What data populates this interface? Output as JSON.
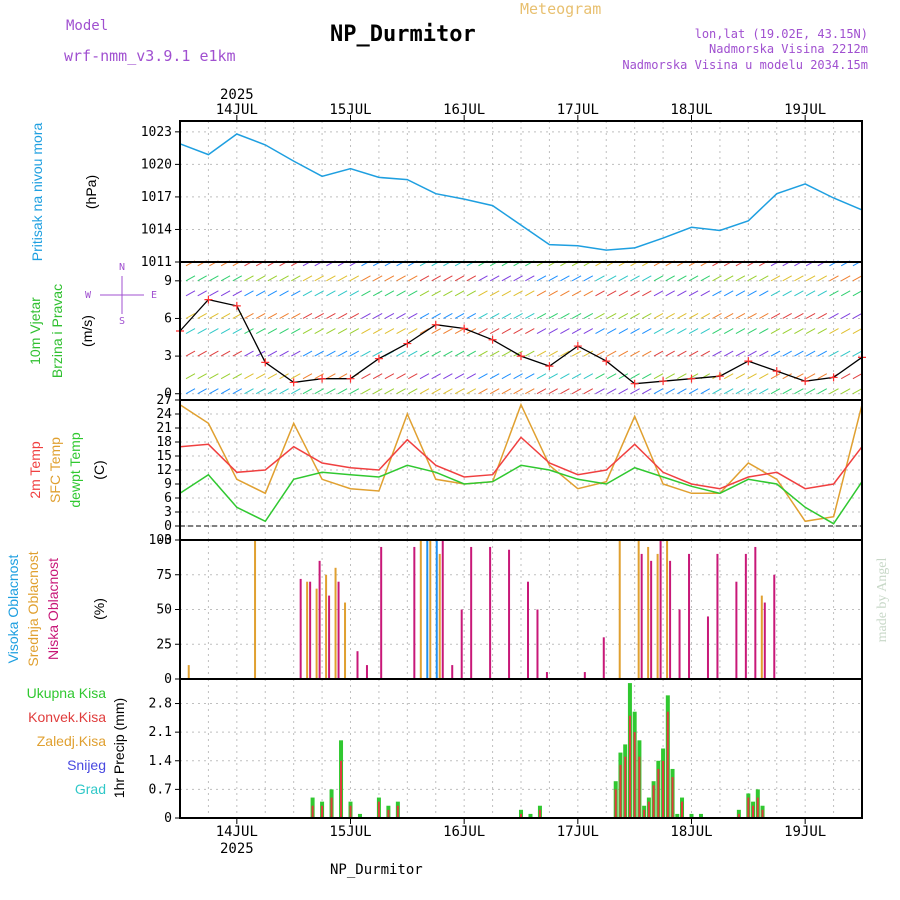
{
  "header": {
    "title": "NP_Durmitor",
    "kind": "Meteogram",
    "model_label": "Model",
    "model_name": "wrf-nmm_v3.9.1 e1km",
    "location": "lon,lat (19.02E, 43.15N)",
    "elevation": "Nadmorska Visina 2212m",
    "model_elevation": "Nadmorska Visina u modelu 2034.15m",
    "credit": "made by Angel",
    "footer_title": "NP_Durmitor"
  },
  "time_axis": {
    "year_label": "2025",
    "day_labels": [
      "14JUL",
      "15JUL",
      "16JUL",
      "17JUL",
      "18JUL",
      "19JUL"
    ],
    "start": "2025-07-13 12:00",
    "end": "2025-07-19 12:00"
  },
  "colors": {
    "pressure": "#1e9fe0",
    "temp2m": "#f04040",
    "sfc_temp": "#e0a030",
    "dewpoint": "#30c830",
    "high_cloud": "#2090f0",
    "mid_cloud": "#e0a030",
    "low_cloud": "#c81878",
    "precip_total": "#30c830",
    "precip_conv": "#e03c3c",
    "snow": "#4848e0",
    "hail": "#30c8c8",
    "wind_speed": "#000000",
    "gust_marker": "#ff3030"
  },
  "chart_data": [
    {
      "type": "line",
      "title": "",
      "ylabel_lines": [
        "Pritisak na nivou mora",
        "(hPa)"
      ],
      "yticks": [
        1011,
        1014,
        1017,
        1020,
        1023
      ],
      "ylim": [
        1011,
        1024
      ],
      "grid": true,
      "x": [
        "2025-07-13 12:00",
        "2025-07-13 18:00",
        "2025-07-14 00:00",
        "2025-07-14 06:00",
        "2025-07-14 12:00",
        "2025-07-14 18:00",
        "2025-07-15 00:00",
        "2025-07-15 06:00",
        "2025-07-15 12:00",
        "2025-07-15 18:00",
        "2025-07-16 00:00",
        "2025-07-16 06:00",
        "2025-07-16 12:00",
        "2025-07-16 18:00",
        "2025-07-17 00:00",
        "2025-07-17 06:00",
        "2025-07-17 12:00",
        "2025-07-17 18:00",
        "2025-07-18 00:00",
        "2025-07-18 06:00",
        "2025-07-18 12:00",
        "2025-07-18 18:00",
        "2025-07-19 00:00",
        "2025-07-19 06:00",
        "2025-07-19 12:00"
      ],
      "series": [
        {
          "name": "",
          "values": [
            1021.9,
            1020.9,
            1022.8,
            1021.8,
            1020.3,
            1018.9,
            1019.6,
            1018.8,
            1018.6,
            1017.3,
            1016.8,
            1016.2,
            1014.4,
            1012.6,
            1012.5,
            1012.1,
            1012.3,
            1013.2,
            1014.2,
            1013.9,
            1014.8,
            1017.3,
            1018.2,
            1016.9,
            1015.8
          ]
        }
      ]
    },
    {
      "type": "line",
      "title": "",
      "ylabel_lines": [
        "10m Vjetar",
        "Brzina i Pravac",
        "(m/s)"
      ],
      "compass": {
        "n": "N",
        "w": "W",
        "e": "E",
        "s": "S"
      },
      "yticks": [
        0,
        3,
        6,
        9
      ],
      "ylim": [
        -0.5,
        10.5
      ],
      "grid": true,
      "x": [
        "2025-07-13 12:00",
        "2025-07-13 18:00",
        "2025-07-14 00:00",
        "2025-07-14 06:00",
        "2025-07-14 12:00",
        "2025-07-14 18:00",
        "2025-07-15 00:00",
        "2025-07-15 06:00",
        "2025-07-15 12:00",
        "2025-07-15 18:00",
        "2025-07-16 00:00",
        "2025-07-16 06:00",
        "2025-07-16 12:00",
        "2025-07-16 18:00",
        "2025-07-17 00:00",
        "2025-07-17 06:00",
        "2025-07-17 12:00",
        "2025-07-17 18:00",
        "2025-07-18 00:00",
        "2025-07-18 06:00",
        "2025-07-18 12:00",
        "2025-07-18 18:00",
        "2025-07-19 00:00",
        "2025-07-19 06:00",
        "2025-07-19 12:00"
      ],
      "series": [
        {
          "name": "",
          "values": [
            5.0,
            7.5,
            7.0,
            2.5,
            0.9,
            1.2,
            1.2,
            2.8,
            4.0,
            5.5,
            5.2,
            4.3,
            3.0,
            2.2,
            3.8,
            2.6,
            0.8,
            1.0,
            1.2,
            1.4,
            2.6,
            1.8,
            1.0,
            1.3,
            2.9
          ]
        }
      ]
    },
    {
      "type": "line",
      "title": "",
      "ylabel_lines": [
        "2m Temp",
        "SFC Temp",
        "dewpt Temp",
        "(C)"
      ],
      "yticks": [
        -3,
        0,
        3,
        6,
        9,
        12,
        15,
        18,
        21,
        24,
        27
      ],
      "ylim": [
        -3,
        27
      ],
      "grid": true,
      "x": [
        "2025-07-13 12:00",
        "2025-07-13 18:00",
        "2025-07-14 00:00",
        "2025-07-14 06:00",
        "2025-07-14 12:00",
        "2025-07-14 18:00",
        "2025-07-15 00:00",
        "2025-07-15 06:00",
        "2025-07-15 12:00",
        "2025-07-15 18:00",
        "2025-07-16 00:00",
        "2025-07-16 06:00",
        "2025-07-16 12:00",
        "2025-07-16 18:00",
        "2025-07-17 00:00",
        "2025-07-17 06:00",
        "2025-07-17 12:00",
        "2025-07-17 18:00",
        "2025-07-18 00:00",
        "2025-07-18 06:00",
        "2025-07-18 12:00",
        "2025-07-18 18:00",
        "2025-07-19 00:00",
        "2025-07-19 06:00",
        "2025-07-19 12:00"
      ],
      "series": [
        {
          "name": "2m Temp",
          "values": [
            17.0,
            17.5,
            11.5,
            12.0,
            17.0,
            13.5,
            12.5,
            12.0,
            18.5,
            13.0,
            10.5,
            11.0,
            19.0,
            13.5,
            11.0,
            12.0,
            17.5,
            11.5,
            9.0,
            8.0,
            10.5,
            11.5,
            8.0,
            9.0,
            17.0
          ]
        },
        {
          "name": "SFC Temp",
          "values": [
            26.0,
            22.0,
            10.0,
            7.0,
            22.0,
            10.0,
            8.0,
            7.5,
            24.0,
            10.0,
            9.0,
            9.5,
            26.0,
            13.0,
            8.0,
            9.5,
            23.5,
            9.0,
            7.0,
            7.0,
            13.5,
            10.0,
            1.0,
            2.0,
            26.0
          ]
        },
        {
          "name": "dewpt Temp",
          "values": [
            7.0,
            11.0,
            4.0,
            1.0,
            10.0,
            11.5,
            11.0,
            10.5,
            13.0,
            11.5,
            9.0,
            9.5,
            13.0,
            12.0,
            10.0,
            9.0,
            12.5,
            10.5,
            8.5,
            7.0,
            10.0,
            9.0,
            4.0,
            0.5,
            9.5
          ]
        }
      ]
    },
    {
      "type": "bar",
      "title": "",
      "ylabel_lines": [
        "Visoka Oblacnost",
        "Srednja Oblacnost",
        "Niska Oblacnost",
        "(%)"
      ],
      "yticks": [
        0,
        25,
        50,
        75,
        100
      ],
      "ylim": [
        0,
        100
      ],
      "grid": true,
      "x": [
        "2025-07-13 13:00",
        "2025-07-14 03:00",
        "2025-07-14 12:00",
        "2025-07-14 14:00",
        "2025-07-14 16:00",
        "2025-07-14 18:00",
        "2025-07-14 20:00",
        "2025-07-14 22:00",
        "2025-07-15 00:00",
        "2025-07-15 02:00",
        "2025-07-15 05:00",
        "2025-07-15 12:00",
        "2025-07-15 14:00",
        "2025-07-15 16:00",
        "2025-07-15 18:00",
        "2025-07-15 20:00",
        "2025-07-15 22:00",
        "2025-07-16 00:00",
        "2025-07-16 04:00",
        "2025-07-16 08:00",
        "2025-07-16 12:00",
        "2025-07-16 14:00",
        "2025-07-16 16:00",
        "2025-07-16 20:00",
        "2025-07-17 00:00",
        "2025-07-17 04:00",
        "2025-07-17 08:00",
        "2025-07-17 12:00",
        "2025-07-17 14:00",
        "2025-07-17 16:00",
        "2025-07-17 18:00",
        "2025-07-17 20:00",
        "2025-07-17 22:00",
        "2025-07-18 02:00",
        "2025-07-18 04:00",
        "2025-07-18 08:00",
        "2025-07-18 10:00",
        "2025-07-18 12:00",
        "2025-07-18 14:00",
        "2025-07-18 16:00",
        "2025-07-18 18:00",
        "2025-07-18 20:00",
        "2025-07-19 00:00"
      ],
      "series": [
        {
          "name": "Visoka Oblacnost",
          "values": [
            0,
            0,
            0,
            0,
            0,
            0,
            0,
            0,
            0,
            0,
            0,
            0,
            0,
            100,
            100,
            0,
            0,
            0,
            0,
            0,
            0,
            0,
            0,
            0,
            0,
            0,
            0,
            0,
            0,
            0,
            0,
            0,
            0,
            0,
            0,
            0,
            0,
            0,
            0,
            0,
            0,
            0,
            0
          ]
        },
        {
          "name": "Srednja Oblacnost",
          "values": [
            10,
            100,
            0,
            70,
            65,
            75,
            80,
            55,
            0,
            0,
            0,
            0,
            100,
            100,
            90,
            0,
            0,
            0,
            0,
            0,
            0,
            0,
            0,
            0,
            0,
            0,
            100,
            100,
            95,
            90,
            100,
            0,
            0,
            0,
            0,
            0,
            0,
            0,
            60,
            0,
            0,
            0,
            0
          ]
        },
        {
          "name": "Niska Oblacnost",
          "values": [
            0,
            0,
            72,
            70,
            85,
            60,
            70,
            0,
            20,
            10,
            95,
            95,
            0,
            0,
            100,
            10,
            50,
            95,
            95,
            93,
            70,
            50,
            5,
            0,
            5,
            30,
            0,
            90,
            85,
            100,
            85,
            50,
            90,
            45,
            90,
            70,
            90,
            95,
            55,
            75,
            0,
            0,
            0
          ]
        }
      ]
    },
    {
      "type": "bar",
      "title": "",
      "ylabel_lines": [
        "1hr Precip (mm)"
      ],
      "legend_entries": [
        "Ukupna Kisa",
        "Konvek.Kisa",
        "Zaledj.Kisa",
        "Snijeg",
        "Grad"
      ],
      "yticks": [
        0,
        0.7,
        1.4,
        2.1,
        2.8
      ],
      "ylim": [
        0,
        3.4
      ],
      "grid": true,
      "x": [
        "2025-07-14 16:00",
        "2025-07-14 18:00",
        "2025-07-14 20:00",
        "2025-07-14 22:00",
        "2025-07-15 00:00",
        "2025-07-15 02:00",
        "2025-07-15 06:00",
        "2025-07-15 08:00",
        "2025-07-15 10:00",
        "2025-07-16 12:00",
        "2025-07-16 14:00",
        "2025-07-16 16:00",
        "2025-07-17 08:00",
        "2025-07-17 09:00",
        "2025-07-17 10:00",
        "2025-07-17 11:00",
        "2025-07-17 12:00",
        "2025-07-17 13:00",
        "2025-07-17 14:00",
        "2025-07-17 15:00",
        "2025-07-17 16:00",
        "2025-07-17 17:00",
        "2025-07-17 18:00",
        "2025-07-17 19:00",
        "2025-07-17 20:00",
        "2025-07-17 21:00",
        "2025-07-17 22:00",
        "2025-07-18 00:00",
        "2025-07-18 02:00",
        "2025-07-18 10:00",
        "2025-07-18 12:00",
        "2025-07-18 13:00",
        "2025-07-18 14:00",
        "2025-07-18 15:00"
      ],
      "series": [
        {
          "name": "Ukupna Kisa",
          "values": [
            0.5,
            0.4,
            0.7,
            1.9,
            0.4,
            0.1,
            0.5,
            0.3,
            0.4,
            0.2,
            0.1,
            0.3,
            0.9,
            1.6,
            1.8,
            3.3,
            2.6,
            1.9,
            0.3,
            0.5,
            0.9,
            1.4,
            1.7,
            3.0,
            1.2,
            0.1,
            0.5,
            0.1,
            0.1,
            0.2,
            0.6,
            0.4,
            0.7,
            0.3
          ]
        },
        {
          "name": "Konvek.Kisa",
          "values": [
            0.3,
            0.3,
            0.5,
            1.4,
            0.3,
            0.0,
            0.4,
            0.2,
            0.3,
            0.1,
            0.0,
            0.2,
            0.7,
            1.3,
            1.5,
            2.5,
            2.1,
            1.5,
            0.2,
            0.4,
            0.8,
            1.2,
            1.4,
            2.6,
            1.0,
            0.0,
            0.4,
            0.0,
            0.0,
            0.1,
            0.5,
            0.3,
            0.5,
            0.2
          ]
        }
      ]
    }
  ]
}
